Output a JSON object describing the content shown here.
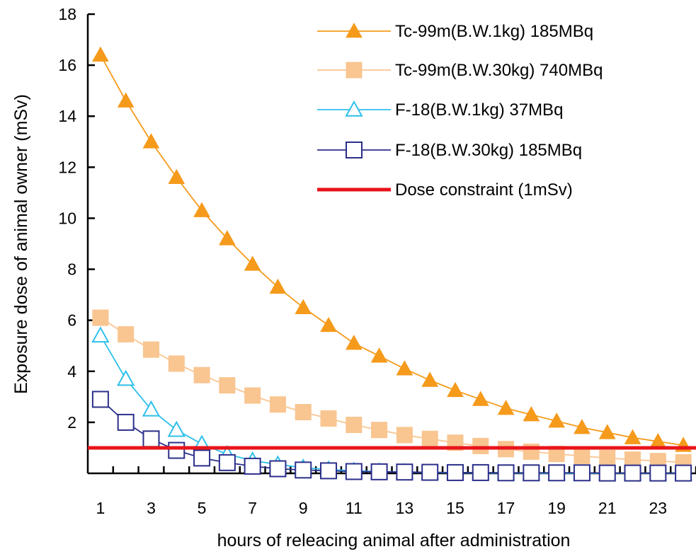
{
  "chart_data": {
    "type": "line",
    "title": "",
    "xlabel": "hours of releacing animal after administration",
    "ylabel": "Exposure dose of animal owner (mSv)",
    "x": [
      1,
      2,
      3,
      4,
      5,
      6,
      7,
      8,
      9,
      10,
      11,
      12,
      13,
      14,
      15,
      16,
      17,
      18,
      19,
      20,
      21,
      22,
      23,
      24
    ],
    "x_tick_labels": [
      "1",
      "3",
      "5",
      "7",
      "9",
      "11",
      "13",
      "15",
      "17",
      "19",
      "21",
      "23"
    ],
    "y_tick_labels": [
      "2",
      "4",
      "6",
      "8",
      "10",
      "12",
      "14",
      "16",
      "18"
    ],
    "xlim": [
      0.5,
      24.5
    ],
    "ylim": [
      0,
      18
    ],
    "y_ticks": [
      2,
      4,
      6,
      8,
      10,
      12,
      14,
      16,
      18
    ],
    "grid": false,
    "legend_position": "top-right",
    "series": [
      {
        "name": "Tc-99m(B.W.1kg) 185MBq",
        "color": "#f59a1b",
        "marker": "filled-triangle",
        "values": [
          16.4,
          14.6,
          13.0,
          11.6,
          10.3,
          9.2,
          8.2,
          7.3,
          6.5,
          5.8,
          5.1,
          4.6,
          4.1,
          3.65,
          3.25,
          2.9,
          2.55,
          2.3,
          2.05,
          1.8,
          1.6,
          1.4,
          1.25,
          1.1
        ]
      },
      {
        "name": "Tc-99m(B.W.30kg) 740MBq",
        "color": "#f9c590",
        "marker": "filled-square",
        "values": [
          6.1,
          5.45,
          4.85,
          4.3,
          3.85,
          3.45,
          3.05,
          2.7,
          2.4,
          2.15,
          1.9,
          1.7,
          1.5,
          1.35,
          1.2,
          1.07,
          0.95,
          0.85,
          0.76,
          0.68,
          0.6,
          0.54,
          0.48,
          0.43
        ]
      },
      {
        "name": "F-18(B.W.1kg) 37MBq",
        "color": "#2fc0ea",
        "marker": "open-triangle",
        "values": [
          5.4,
          3.7,
          2.5,
          1.7,
          1.15,
          0.75,
          0.5,
          0.35,
          0.22,
          0.15,
          0.1,
          0.07,
          0.05,
          0.03,
          0.02,
          0.01,
          0.01,
          0.0,
          0.0,
          0.0,
          0.0,
          0.0,
          0.0,
          0.0
        ]
      },
      {
        "name": "F-18(B.W.30kg) 185MBq",
        "color": "#2b2f8a",
        "marker": "open-square",
        "values": [
          2.9,
          2.0,
          1.35,
          0.9,
          0.6,
          0.42,
          0.28,
          0.18,
          0.13,
          0.1,
          0.07,
          0.06,
          0.05,
          0.04,
          0.03,
          0.03,
          0.02,
          0.02,
          0.02,
          0.02,
          0.01,
          0.01,
          0.01,
          0.01
        ]
      }
    ],
    "reference_line": {
      "name": "Dose constraint (1mSv)",
      "value": 1,
      "color": "#e8141b"
    }
  }
}
